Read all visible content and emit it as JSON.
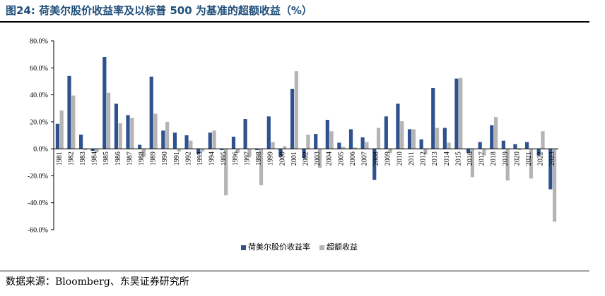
{
  "figure": {
    "title": "图24:  荷美尔股价收益率及以标普 500 为基准的超额收益（%）",
    "source": "数据来源：Bloomberg、东吴证券研究所"
  },
  "colors": {
    "series_1": "#2f528f",
    "series_2": "#b4b4b4",
    "axis": "#000000"
  },
  "chart_data": {
    "type": "bar",
    "title": "",
    "xlabel": "",
    "ylabel": "",
    "ylim": [
      -60,
      80
    ],
    "yticks": [
      80,
      60,
      40,
      20,
      0,
      -20,
      -40,
      -60
    ],
    "ytick_labels": [
      "80.0%",
      "60.0%",
      "40.0%",
      "20.0%",
      "0.0%",
      "-20.0%",
      "-40.0%",
      "-60.0%"
    ],
    "legend_position": "bottom-center",
    "grid": false,
    "categories": [
      "1981",
      "1982",
      "1983",
      "1984",
      "1985",
      "1986",
      "1987",
      "1988",
      "1989",
      "1990",
      "1991",
      "1992",
      "1993",
      "1994",
      "1995",
      "1996",
      "1997",
      "1998",
      "1999",
      "2000",
      "2001",
      "2002",
      "2003",
      "2004",
      "2005",
      "2006",
      "2007",
      "2008",
      "2009",
      "2010",
      "2011",
      "2012",
      "2013",
      "2014",
      "2015",
      "2016",
      "2017",
      "2018",
      "2019",
      "2020",
      "2021",
      "2022",
      "2023"
    ],
    "series": [
      {
        "name": "荷美尔股价收益率",
        "values": [
          18.5,
          54,
          10.5,
          -1.5,
          68,
          33.5,
          25,
          3,
          53.5,
          13.5,
          12,
          10,
          -4,
          12,
          -1,
          9,
          22,
          -1,
          24,
          -6,
          44.5,
          -7,
          11,
          21.5,
          4.5,
          14.5,
          8.5,
          -23,
          24,
          33.5,
          14.5,
          7,
          45,
          15.5,
          52,
          -3,
          5,
          17.5,
          6,
          3.5,
          5,
          -5,
          -30
        ]
      },
      {
        "name": "超额收益",
        "values": [
          28.5,
          39.5,
          -1,
          -2.5,
          41.5,
          19,
          23,
          -6,
          26,
          20,
          -2,
          6,
          -2,
          13.5,
          -34.5,
          -3,
          -6,
          -27,
          5,
          2,
          57.5,
          10.5,
          -14,
          13,
          1.5,
          1,
          5,
          15.5,
          -3,
          20.5,
          14.5,
          -4,
          15.5,
          4.5,
          52.5,
          -21,
          -5,
          23.5,
          -23.5,
          -1,
          -22,
          13,
          -54
        ]
      }
    ]
  }
}
